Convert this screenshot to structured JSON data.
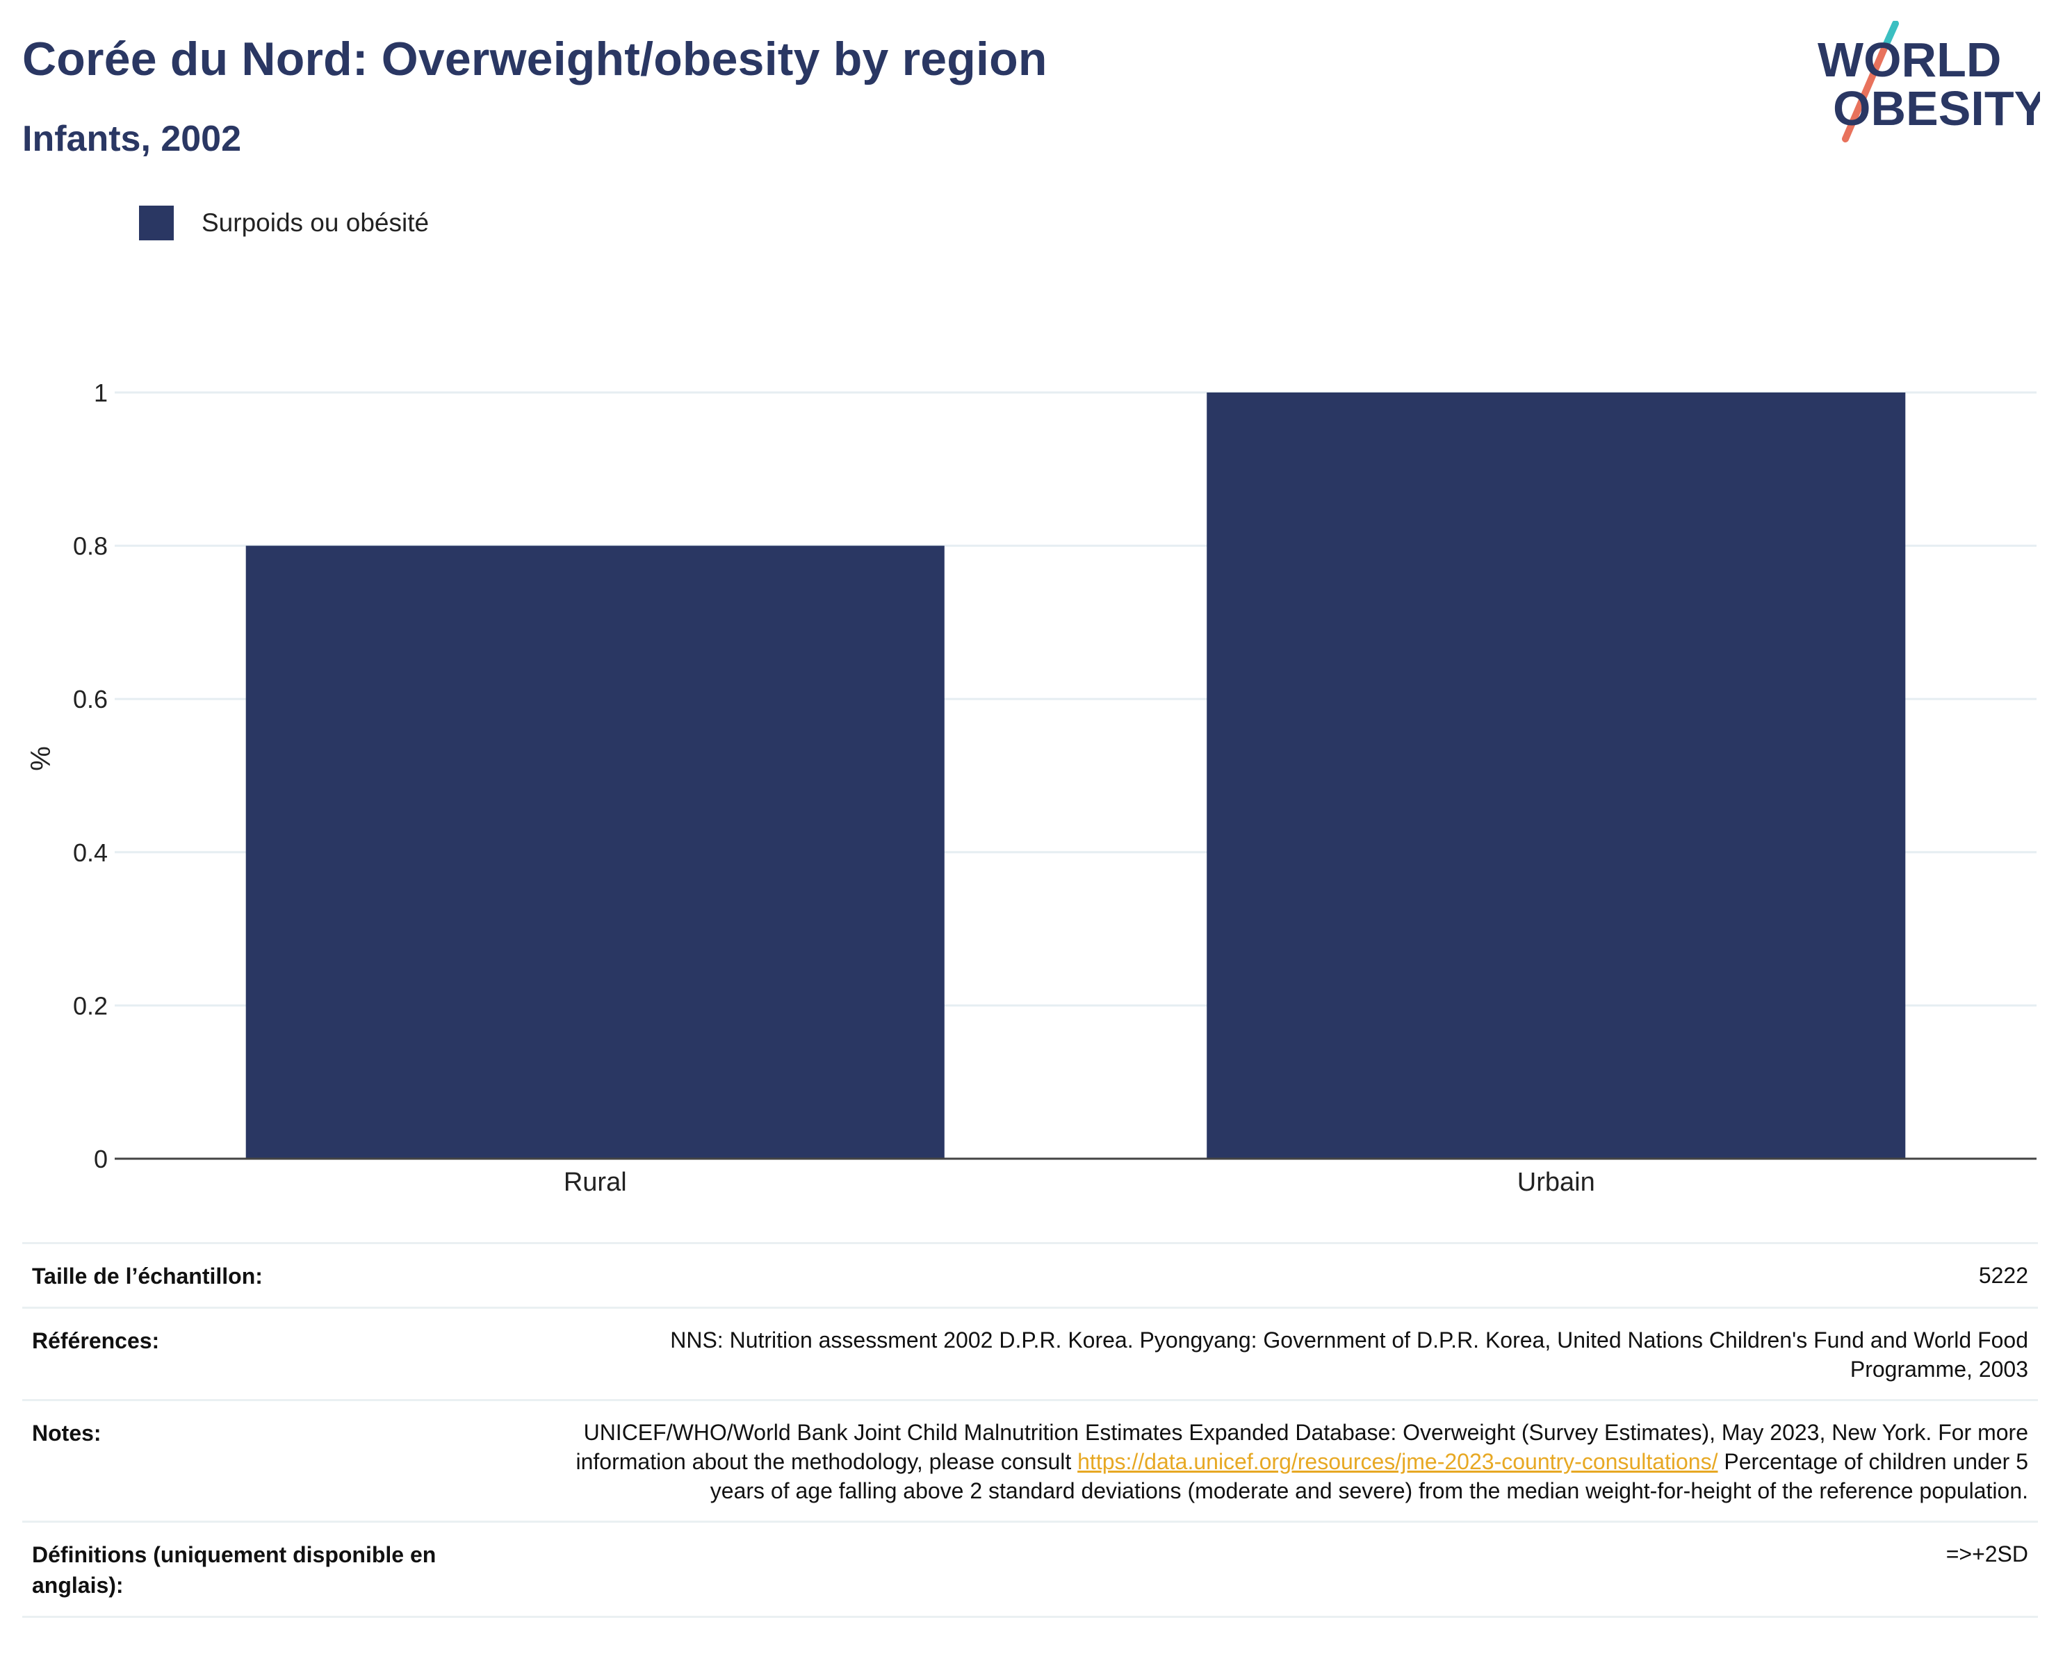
{
  "title": "Corée du Nord: Overweight/obesity by region",
  "subtitle": "Infants, 2002",
  "logo": {
    "line1": "WORLD",
    "line2": "OBESITY",
    "colors": {
      "text": "#2a3763",
      "slash_top": "#3bbfc1",
      "slash_bottom": "#e8725c"
    }
  },
  "colors": {
    "bar": "#2a3763",
    "grid": "#e6eef2",
    "axis": "#444444",
    "link": "#e7a823"
  },
  "chart_data": {
    "type": "bar",
    "categories": [
      "Rural",
      "Urbain"
    ],
    "series": [
      {
        "name": "Surpoids ou obésité",
        "values": [
          0.8,
          1.0
        ]
      }
    ],
    "ylabel": "%",
    "xlabel": "",
    "ylim": [
      0,
      1.0
    ],
    "yticks": [
      "0",
      "0.2",
      "0.4",
      "0.6",
      "0.8",
      "1"
    ],
    "grid": true,
    "legend_position": "top-left"
  },
  "info": {
    "sample_label": "Taille de l’échantillon:",
    "sample_value": "5222",
    "refs_label": "Références:",
    "refs_value": "NNS: Nutrition assessment 2002 D.P.R. Korea. Pyongyang: Government of D.P.R. Korea, United Nations Children's Fund and World Food Programme, 2003",
    "notes_label": "Notes:",
    "notes_text1": "UNICEF/WHO/World Bank Joint Child Malnutrition Estimates Expanded Database: Overweight (Survey Estimates), May 2023, New York. For more information about the methodology, please consult ",
    "notes_link": "https://data.unicef.org/resources/jme-2023-country-consultations/",
    "notes_text2": " Percentage of children under 5 years of age falling above 2 standard deviations (moderate and severe) from the median weight-for-height of the reference population.",
    "defs_label": "Définitions (uniquement disponible en anglais):",
    "defs_value": "=>+2SD"
  }
}
